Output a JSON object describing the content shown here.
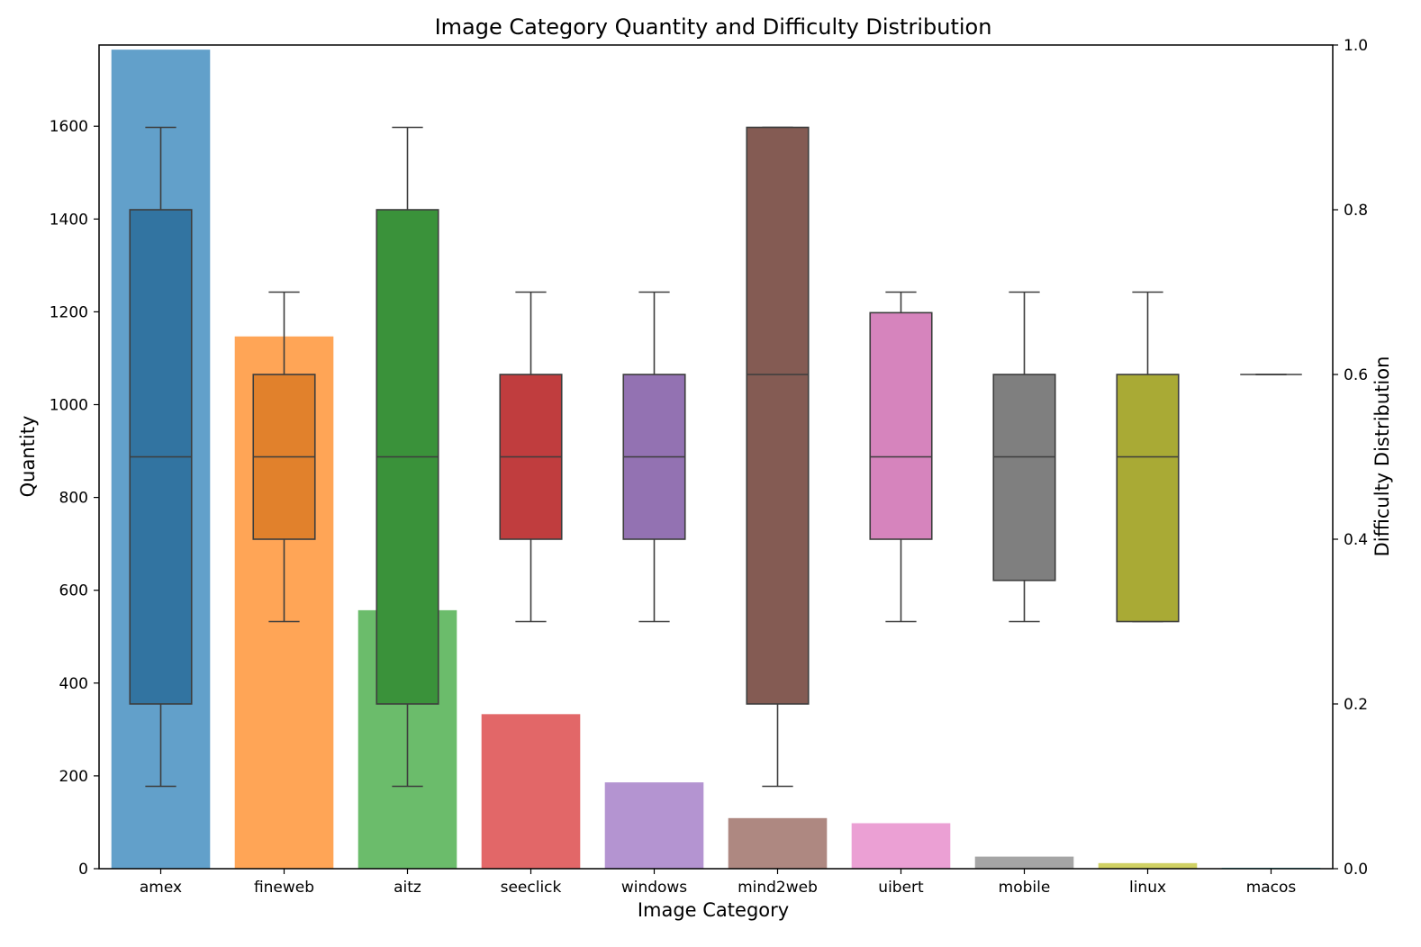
{
  "chart_data": {
    "type": "bar",
    "title": "Image Category Quantity and Difficulty Distribution",
    "xlabel": "Image Category",
    "ylabel": "Quantity",
    "y2label": "Difficulty Distribution",
    "ylim": [
      0,
      1775
    ],
    "y2lim": [
      0,
      1.0
    ],
    "yticks": [
      "0",
      "200",
      "400",
      "600",
      "800",
      "1000",
      "1200",
      "1400",
      "1600"
    ],
    "y2ticks": [
      "0.0",
      "0.2",
      "0.4",
      "0.6",
      "0.8",
      "1.0"
    ],
    "categories": [
      "amex",
      "fineweb",
      "aitz",
      "seeclick",
      "windows",
      "mind2web",
      "uibert",
      "mobile",
      "linux",
      "macos"
    ],
    "quantity": [
      1765,
      1147,
      557,
      333,
      186,
      109,
      98,
      26,
      12,
      2
    ],
    "bar_colors": [
      "#1f77b4",
      "#ff7f0e",
      "#2ca02c",
      "#d62728",
      "#9467bd",
      "#8c564b",
      "#e377c2",
      "#7f7f7f",
      "#bcbd22",
      "#17becf"
    ],
    "box_colors": [
      "#3274a1",
      "#e1812c",
      "#3a923a",
      "#c03d3e",
      "#9372b2",
      "#845b53",
      "#d684bd",
      "#7f7f7f",
      "#a9aa35",
      "#2eb4c8"
    ],
    "difficulty_boxes": [
      {
        "category": "amex",
        "whisker_low": 0.1,
        "q1": 0.2,
        "median": 0.5,
        "q3": 0.8,
        "whisker_high": 0.9
      },
      {
        "category": "fineweb",
        "whisker_low": 0.3,
        "q1": 0.4,
        "median": 0.5,
        "q3": 0.6,
        "whisker_high": 0.7
      },
      {
        "category": "aitz",
        "whisker_low": 0.1,
        "q1": 0.2,
        "median": 0.5,
        "q3": 0.8,
        "whisker_high": 0.9
      },
      {
        "category": "seeclick",
        "whisker_low": 0.3,
        "q1": 0.4,
        "median": 0.5,
        "q3": 0.6,
        "whisker_high": 0.7
      },
      {
        "category": "windows",
        "whisker_low": 0.3,
        "q1": 0.4,
        "median": 0.5,
        "q3": 0.6,
        "whisker_high": 0.7
      },
      {
        "category": "mind2web",
        "whisker_low": 0.1,
        "q1": 0.2,
        "median": 0.6,
        "q3": 0.9,
        "whisker_high": 0.9
      },
      {
        "category": "uibert",
        "whisker_low": 0.3,
        "q1": 0.4,
        "median": 0.5,
        "q3": 0.675,
        "whisker_high": 0.7
      },
      {
        "category": "mobile",
        "whisker_low": 0.3,
        "q1": 0.35,
        "median": 0.5,
        "q3": 0.6,
        "whisker_high": 0.7
      },
      {
        "category": "linux",
        "whisker_low": 0.3,
        "q1": 0.3,
        "median": 0.5,
        "q3": 0.6,
        "whisker_high": 0.7
      },
      {
        "category": "macos",
        "whisker_low": 0.6,
        "q1": 0.6,
        "median": 0.6,
        "q3": 0.6,
        "whisker_high": 0.6
      }
    ]
  }
}
